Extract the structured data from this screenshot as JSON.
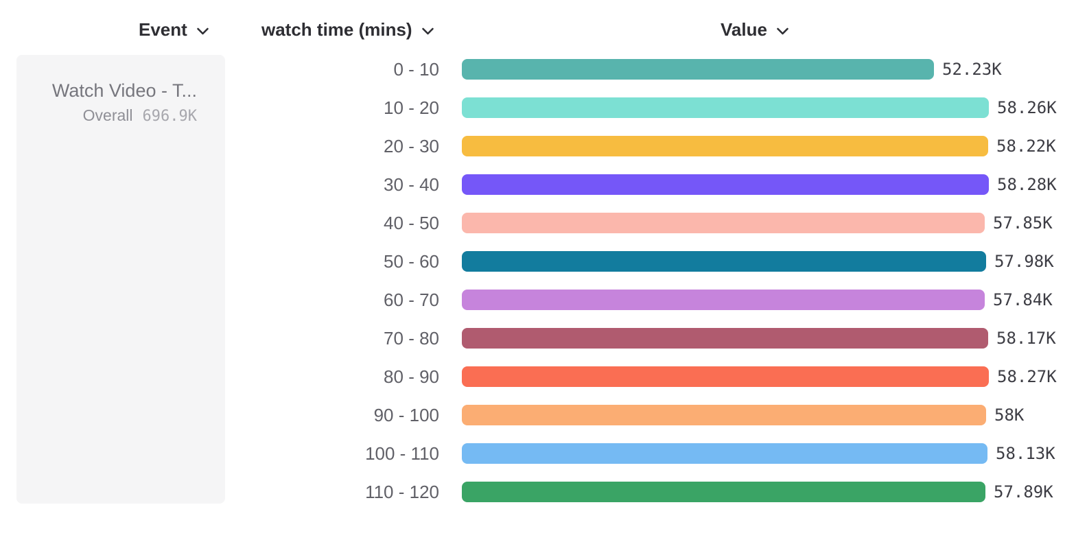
{
  "header": {
    "event_label": "Event",
    "breakdown_label": "watch time (mins)",
    "value_label": "Value"
  },
  "event_card": {
    "title": "Watch Video - T...",
    "overall_label": "Overall",
    "overall_value": "696.9K"
  },
  "chart_data": {
    "type": "bar",
    "orientation": "horizontal",
    "series_name": "watch time (mins)",
    "categories": [
      "0 - 10",
      "10 - 20",
      "20 - 30",
      "30 - 40",
      "40 - 50",
      "50 - 60",
      "60 - 70",
      "70 - 80",
      "80 - 90",
      "90 - 100",
      "100 - 110",
      "110 - 120"
    ],
    "values": [
      52230,
      58260,
      58220,
      58280,
      57850,
      57980,
      57840,
      58170,
      58270,
      58000,
      58130,
      57890
    ],
    "value_labels": [
      "52.23K",
      "58.26K",
      "58.22K",
      "58.28K",
      "57.85K",
      "57.98K",
      "57.84K",
      "58.17K",
      "58.27K",
      "58K",
      "58.13K",
      "57.89K"
    ],
    "colors": [
      "#58b4ad",
      "#7ce0d3",
      "#f7bc40",
      "#7557f8",
      "#fbb7ac",
      "#127c9e",
      "#c684dc",
      "#b05b6f",
      "#fa6e53",
      "#fbad73",
      "#75baf3",
      "#3aa465"
    ],
    "xlim": [
      0,
      58280
    ],
    "title": "",
    "xlabel": "",
    "ylabel": "watch time (mins)",
    "grid": false,
    "legend": false
  }
}
